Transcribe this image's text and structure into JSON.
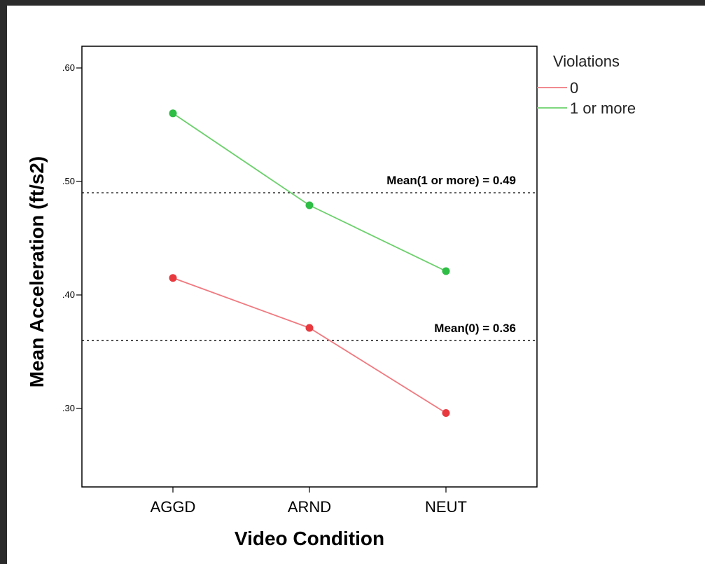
{
  "chart_data": {
    "type": "line",
    "xlabel": "Video Condition",
    "ylabel": "Mean Acceleration (ft/s2)",
    "categories": [
      "AGGD",
      "ARND",
      "NEUT"
    ],
    "ylim": [
      0.23,
      0.62
    ],
    "yticks": [
      0.3,
      0.4,
      0.5,
      0.6
    ],
    "ytick_labels": [
      ".30",
      ".40",
      ".50",
      ".60"
    ],
    "grid": false,
    "legend": {
      "title": "Violations",
      "placement": "right"
    },
    "series": [
      {
        "name": "0",
        "color": "#f07a80",
        "marker_color": "#e8393f",
        "values": [
          0.415,
          0.371,
          0.296
        ]
      },
      {
        "name": "1 or more",
        "color": "#6cd06c",
        "marker_color": "#2ebd45",
        "values": [
          0.56,
          0.479,
          0.421
        ]
      }
    ],
    "reference_lines": [
      {
        "label": "Mean(1 or more) = 0.49",
        "value": 0.49,
        "style": "dotted"
      },
      {
        "label": "Mean(0) = 0.36",
        "value": 0.36,
        "style": "dotted"
      }
    ]
  }
}
